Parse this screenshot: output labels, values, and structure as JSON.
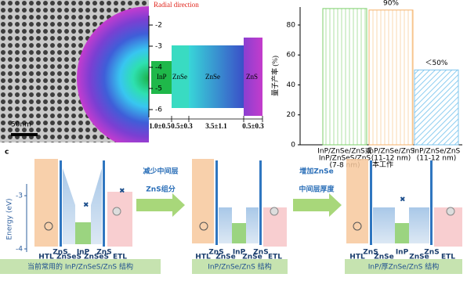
{
  "panel_a": {
    "title": "Radial direction",
    "scale_bar": "50nm",
    "energy_ticks": [
      -2,
      -3,
      -4,
      -5,
      -6
    ],
    "layers": [
      "InP",
      "ZnSe",
      "ZnSe",
      "ZnS"
    ],
    "thicknesses": [
      "1.0±0.5",
      "0.5±0.3",
      "3.5±1.1",
      "0.5±0.3"
    ]
  },
  "chart_data": {
    "type": "bar",
    "y_label": "量子产率 (%)",
    "categories": [
      [
        "InP/ZnSe/ZnS或",
        "InP/ZnSeS/ZnS",
        "(7-8 nm)"
      ],
      [
        "InP/ZnSe/ZnS",
        "(11-12 nm)"
      ],
      [
        "InP/ZnSe/ZnS",
        "(11-12 nm)"
      ]
    ],
    "note": "本工作",
    "values": [
      91,
      90,
      50
    ],
    "value_labels": [
      null,
      "90%",
      "＜50%"
    ],
    "colors": [
      "#7ccf6a",
      "#f5b26b",
      "#7fc4ec"
    ],
    "ylim": [
      0,
      92
    ],
    "yticks": [
      0,
      20,
      40,
      60,
      80
    ]
  },
  "panel_c": {
    "label": "c",
    "axis_label": "Energy (eV)",
    "energy_ticks": [
      -3,
      -4
    ],
    "step1": [
      "减少中间层",
      "ZnS组分"
    ],
    "step2": [
      "增加ZnSe",
      "中间层厚度"
    ],
    "diagrams": [
      {
        "labels": [
          "HTL",
          "ZnS",
          "ZnSeS",
          "InP",
          "ZnSeS",
          "ZnS",
          "ETL"
        ],
        "caption": "当前常用的 InP/ZnSeS/ZnS 结构"
      },
      {
        "labels": [
          "HTL",
          "ZnS",
          "ZnSe",
          "InP",
          "ZnSe",
          "ZnS",
          "ETL"
        ],
        "caption": "InP/ZnSe/ZnS 结构"
      },
      {
        "labels": [
          "HTL",
          "ZnS",
          "ZnSe",
          "InP",
          "ZnSe",
          "ZnS",
          "ETL"
        ],
        "caption": "InP/厚ZnSe/ZnS 结构"
      }
    ]
  }
}
